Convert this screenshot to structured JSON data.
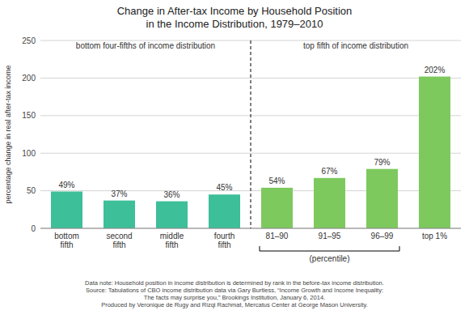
{
  "chart_data": {
    "type": "bar",
    "title": "Change in After-tax Income by Household Position\nin the Income Distribution, 1979–2010",
    "ylabel": "percentage change in real after-tax income",
    "categories": [
      "bottom\nfifth",
      "second\nfifth",
      "middle\nfifth",
      "fourth\nfifth",
      "81–90",
      "91–95",
      "96–99",
      "top 1%"
    ],
    "values": [
      49,
      37,
      36,
      45,
      54,
      67,
      79,
      202
    ],
    "value_labels": [
      "49%",
      "37%",
      "36%",
      "45%",
      "54%",
      "67%",
      "79%",
      "202%"
    ],
    "data_labels": true,
    "colors": [
      "#3dbf99",
      "#3dbf99",
      "#3dbf99",
      "#3dbf99",
      "#7dc95e",
      "#7dc95e",
      "#7dc95e",
      "#7dc95e"
    ],
    "ylim": [
      0,
      250
    ],
    "yticks": [
      0,
      50,
      100,
      150,
      200,
      250
    ],
    "grid": true,
    "annotations": [
      "bottom four-fifths of income distribution",
      "top fifth of income distribution",
      "(percentile)",
      "Data note: Household position in income distribution is determined by rank in the before-tax income distribution.\nSource: Tabulations of CBO income distribution data via Gary Burtless, “Income Growth and Income Inequality:\nThe facts may surprise you,” Brookings Institution, January 6, 2014.\nProduced by Veronique de Rugy and Rizqi Rachmat, Mercatus Center at George Mason University."
    ]
  }
}
